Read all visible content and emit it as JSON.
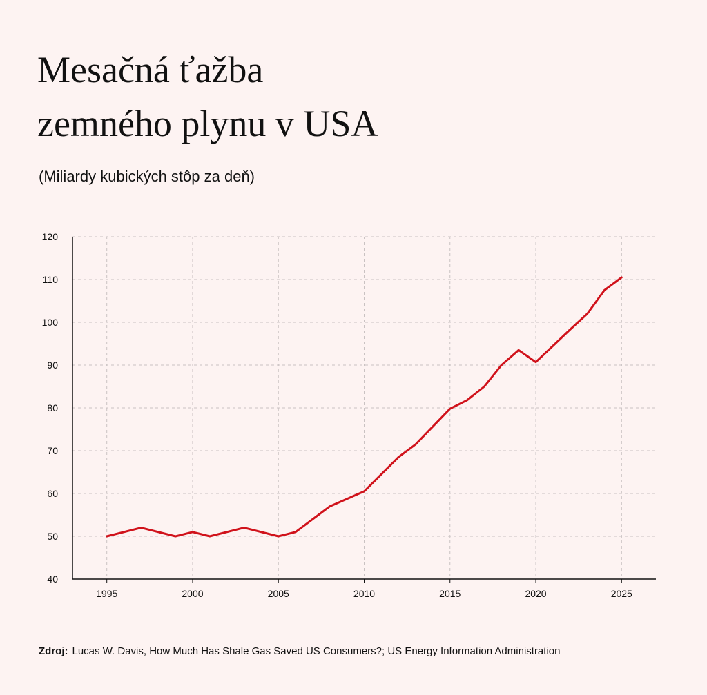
{
  "header": {
    "title_line1": "Mesačná ťažba",
    "title_line2": "zemného plynu v USA",
    "subtitle": "(Miliardy kubických stôp za deň)"
  },
  "footer": {
    "source_label": "Zdroj:",
    "source_text": "Lucas W. Davis, How Much Has Shale Gas Saved US Consumers?; US Energy Information Administration"
  },
  "colors": {
    "line": "#d0121b",
    "grid": "#c9c2c2",
    "axis": "#111111",
    "background": "#fdf3f2"
  },
  "chart_data": {
    "type": "line",
    "title": "Mesačná ťažba zemného plynu v USA",
    "subtitle": "(Miliardy kubických stôp za deň)",
    "xlabel": "",
    "ylabel": "",
    "xlim": [
      1993,
      2027
    ],
    "ylim": [
      40,
      120
    ],
    "xticks": [
      1995,
      2000,
      2005,
      2010,
      2015,
      2020,
      2025
    ],
    "yticks": [
      40,
      50,
      60,
      70,
      80,
      90,
      100,
      110,
      120
    ],
    "grid": true,
    "grid_style": "dashed",
    "legend": "none",
    "series": [
      {
        "x": [
          1995,
          1997,
          1999,
          2000,
          2001,
          2003,
          2005,
          2006,
          2008,
          2010,
          2012,
          2013,
          2015,
          2016,
          2017,
          2018,
          2019,
          2020,
          2021,
          2022,
          2023,
          2024,
          2024.5,
          2025
        ],
        "y": [
          50,
          52,
          50,
          51,
          50,
          52,
          50,
          51,
          57,
          60.5,
          68.5,
          71.5,
          79.8,
          81.8,
          85,
          90,
          93.5,
          90.7,
          94.5,
          98.3,
          102,
          107.5,
          109,
          110.5
        ]
      }
    ]
  }
}
